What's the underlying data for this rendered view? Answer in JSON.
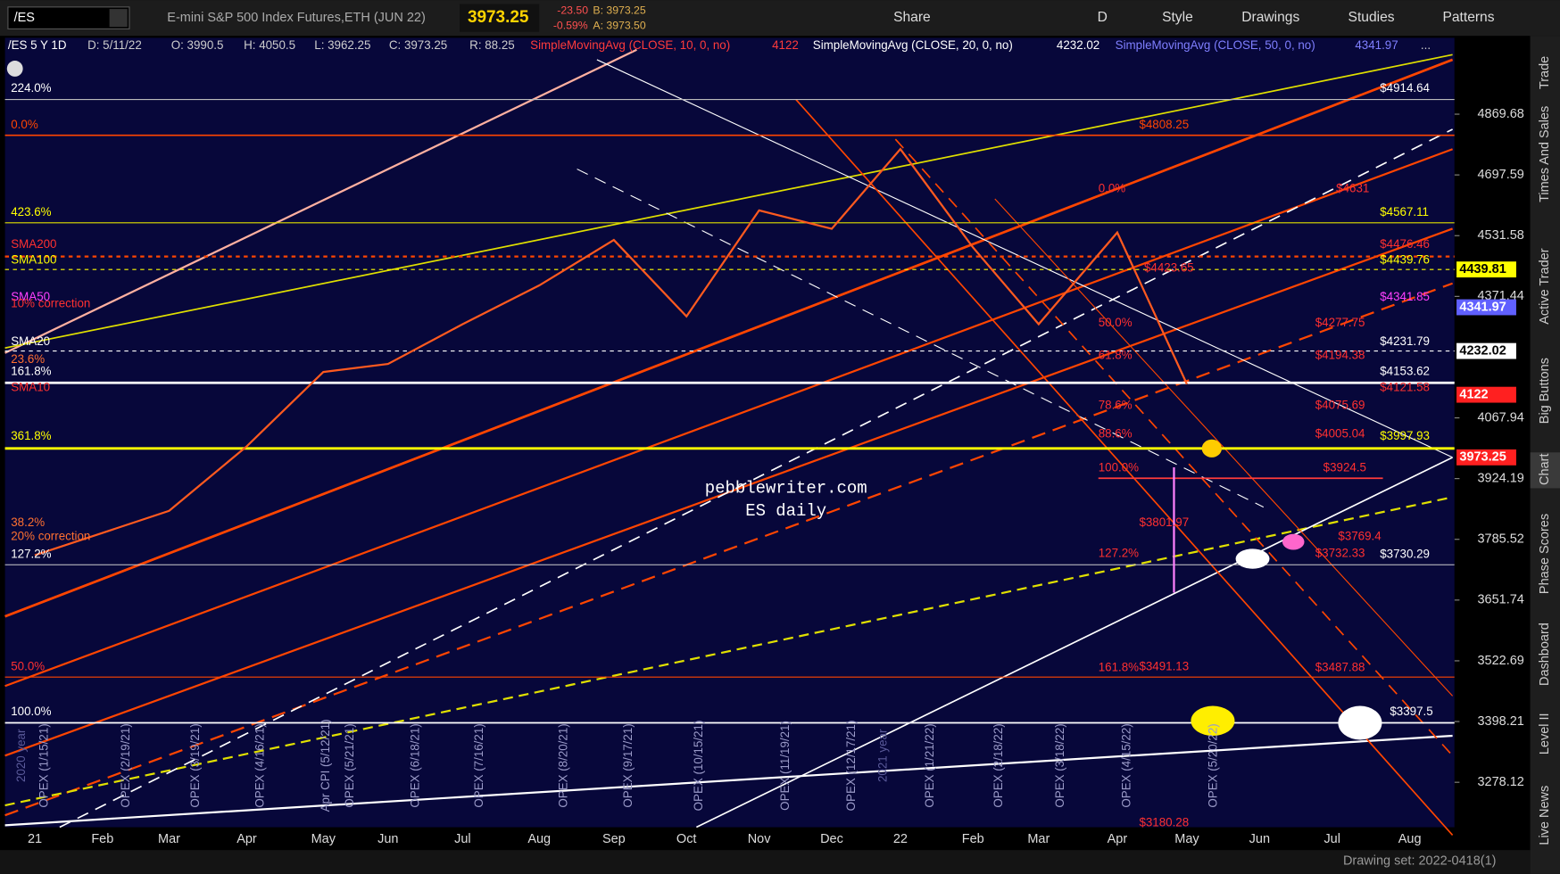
{
  "toolbar": {
    "symbol": "/ES",
    "description": "E-mini S&P 500 Index Futures,ETH (JUN 22)",
    "last": "3973.25",
    "change": "-23.50",
    "change_pct": "-0.59%",
    "bid": "B: 3973.25",
    "ask": "A: 3973.50",
    "buttons": [
      "Share",
      "D",
      "Style",
      "Drawings",
      "Studies",
      "Patterns"
    ]
  },
  "header": {
    "symbol": "/ES 5 Y 1D",
    "date": "D: 5/11/22",
    "open": "O: 3990.5",
    "high": "H: 4050.5",
    "low": "L: 3962.25",
    "close": "C: 3973.25",
    "range": "R: 88.25",
    "studies": [
      {
        "name": "SimpleMovingAvg (CLOSE, 10, 0, no)",
        "value": "4122",
        "color": "#ff3b3b"
      },
      {
        "name": "SimpleMovingAvg (CLOSE, 20, 0, no)",
        "value": "4232.02",
        "color": "#ffffff"
      },
      {
        "name": "SimpleMovingAvg (CLOSE, 50, 0, no)",
        "value": "4341.97",
        "color": "#7f7fff"
      }
    ],
    "more": "..."
  },
  "chart_data": {
    "type": "line",
    "categories": [
      "21",
      "Feb",
      "Mar",
      "Apr",
      "May",
      "Jun",
      "Jul",
      "Aug",
      "Sep",
      "Oct",
      "Nov",
      "Dec",
      "22",
      "Feb",
      "Mar",
      "Apr",
      "May",
      "Jun",
      "Jul",
      "Aug"
    ],
    "values": [
      3750,
      3800,
      3850,
      4000,
      4180,
      4200,
      4300,
      4400,
      4520,
      4320,
      4600,
      4550,
      4770,
      4500,
      4300,
      4540,
      4150,
      null,
      null,
      null
    ],
    "color": "#ff5a1f",
    "log_scale": true,
    "ylim": [
      3192,
      5095
    ],
    "yticks": [
      4869.68,
      4697.59,
      4531.58,
      4371.44,
      4067.94,
      3924.19,
      3785.52,
      3651.74,
      3522.69,
      3398.21,
      3278.12
    ],
    "watermark": [
      "pebblewriter.com",
      "ES daily"
    ]
  },
  "left_labels": [
    "224.0%",
    "0.0%",
    "423.6%",
    "SMA200",
    "SMA100",
    "SMA50",
    "10% correction",
    "SMA20",
    "23.6%",
    "161.8%",
    "SMA10",
    "361.8%",
    "38.2%",
    "20% correction",
    "127.2%",
    "50.0%",
    "100.0%"
  ],
  "price_levels": [
    "$4914.64",
    "$4808.25",
    "$4631",
    "$4567.11",
    "$4476.46",
    "$4439.76",
    "$4423.65",
    "$4341.85",
    "$4277.75",
    "$4231.79",
    "$4194.38",
    "$4153.62",
    "$4121.58",
    "$4075.69",
    "$4005.04",
    "$3997.93",
    "$3924.5",
    "$3801.97",
    "$3769.4",
    "$3732.33",
    "$3730.29",
    "$3491.13",
    "$3487.88",
    "$3397.5",
    "$3180.28"
  ],
  "fib_labels": [
    "0.0%",
    "50.0%",
    "61.8%",
    "78.6%",
    "88.6%",
    "100.0%",
    "127.2%",
    "161.8%"
  ],
  "events": [
    "2020 year",
    "OPEX (1/15/21)",
    "OPEX (2/19/21)",
    "OPEX (3/19/21)",
    "OPEX (4/16/21)",
    "Apr CPI (5/12/21)",
    "OPEX (5/21/21)",
    "OPEX (6/18/21)",
    "OPEX (7/16/21)",
    "OPEX (8/20/21)",
    "OPEX (9/17/21)",
    "OPEX (10/15/21)",
    "OPEX (11/19/21)",
    "OPEX (12/17/21)",
    "2021 year",
    "OPEX (1/21/22)",
    "OPEX (2/18/22)",
    "OPEX (3/18/22)",
    "OPEX (4/15/22)",
    "OPEX (5/20/22)"
  ],
  "axis_badges": [
    "4439.81",
    "4341.97",
    "4232.02",
    "4122",
    "3973.25"
  ],
  "sidebar": [
    "Trade",
    "Times And Sales",
    "Active Trader",
    "Big Buttons",
    "Chart",
    "Phase Scores",
    "Dashboard",
    "Level II",
    "Live News"
  ],
  "footer": {
    "drawing_set": "Drawing set: 2022-0418(1)"
  }
}
